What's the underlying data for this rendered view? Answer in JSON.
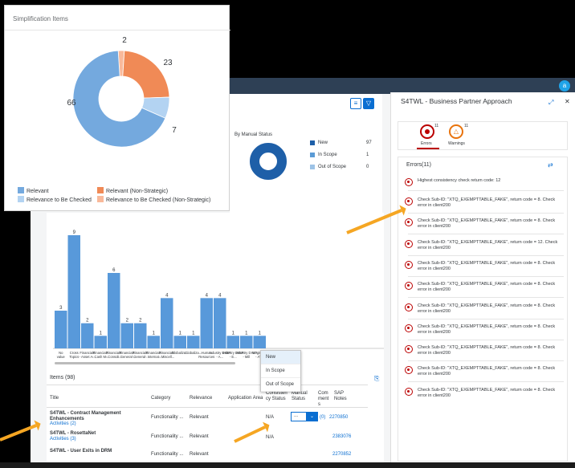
{
  "shell": {
    "avatar": "a"
  },
  "manual_status": {
    "title": "By Manual Status",
    "legend": [
      {
        "label": "New",
        "value": "97",
        "color": "#1e5fa8"
      },
      {
        "label": "In Scope",
        "value": "1",
        "color": "#5b9bd5"
      },
      {
        "label": "Out of Scope",
        "value": "0",
        "color": "#9dc3e6"
      }
    ]
  },
  "bar_chart": {
    "chart_data": {
      "type": "bar",
      "categories": [
        "No value",
        "Cross Topics",
        "Financials - Asset A...",
        "Financials - Cash M...",
        "Financials - Consoli...",
        "Financials - General ...",
        "Financials - General ...",
        "Financials - Internat...",
        "Financials - Miscell...",
        "Globaliza...",
        "Globaliza...",
        "Human Resources",
        "Industry DIMP - A...",
        "Industry DIMP - E...",
        "Industry DIMP - Mill",
        "Logistics - ATP"
      ],
      "values": [
        3,
        9,
        2,
        1,
        6,
        2,
        2,
        1,
        4,
        1,
        1,
        4,
        4,
        1,
        1,
        1
      ],
      "ylim": [
        0,
        9
      ],
      "color": "#5899da"
    }
  },
  "items": {
    "title": "Items (98)",
    "columns": [
      "Title",
      "Category",
      "Relevance",
      "Application Area",
      "Consistency Status",
      "Manual Status",
      "Comments",
      "SAP Notes"
    ],
    "col_display": [
      "Title",
      "Category",
      "Relevance",
      "Application Area",
      "Consisten\ncy Status",
      "Manual\nStatus",
      "Com\nment\ns",
      "SAP\nNotes"
    ],
    "rows": [
      {
        "title": "S4TWL - Contract Management Enhancements",
        "activities": "Activities (2)",
        "category": "Functionality ...",
        "relevance": "Relevant",
        "consistency": "N/A",
        "manual_status": "...",
        "comments": "(0)",
        "note": "2270850"
      },
      {
        "title": "S4TWL - RosettaNet",
        "activities": "Activities (3)",
        "category": "Functionality ...",
        "relevance": "Relevant",
        "consistency": "N/A",
        "manual_status": "",
        "comments": "",
        "note": "2383076"
      },
      {
        "title": "S4TWL - User Exits in DRM",
        "activities": "",
        "category": "Functionality ...",
        "relevance": "Relevant",
        "consistency": "",
        "manual_status": "",
        "comments": "",
        "note": "2270852"
      }
    ],
    "dropdown_options": [
      "New",
      "In Scope",
      "Out of Scope"
    ]
  },
  "panel": {
    "title": "S4TWL - Business Partner Approach",
    "errors_tab": {
      "label": "Errors",
      "count": "11"
    },
    "warnings_tab": {
      "label": "Warnings",
      "count": "11"
    },
    "section_title": "Errors(11)",
    "messages": [
      "Highest consistency check return code: 12",
      "Check Sub-ID: \"XTQ_EXEMPTTABLE_FAKE\", return code = 8. Check error in client200",
      "Check Sub-ID: \"XTQ_EXEMPTTABLE_FAKE\", return code = 8. Check error in client200",
      "Check Sub-ID: \"XTQ_EXEMPTTABLE_FAKE\", return code = 12. Check error in client200",
      "Check Sub-ID: \"XTQ_EXEMPTTABLE_FAKE\", return code = 8. Check error in client200",
      "Check Sub-ID: \"XTQ_EXEMPTTABLE_FAKE\", return code = 8. Check error in client200",
      "Check Sub-ID: \"XTQ_EXEMPTTABLE_FAKE\", return code = 8. Check error in client200",
      "Check Sub-ID: \"XTQ_EXEMPTTABLE_FAKE\", return code = 8. Check error in client200",
      "Check Sub-ID: \"XTQ_EXEMPTTABLE_FAKE\", return code = 8. Check error in client200",
      "Check Sub-ID: \"XTQ_EXEMPTTABLE_FAKE\", return code = 8. Check error in client200",
      "Check Sub-ID: \"XTQ_EXEMPTTABLE_FAKE\", return code = 8. Check error in client200"
    ]
  },
  "pie": {
    "title": "Simplification Items",
    "chart_data": {
      "type": "pie",
      "categories": [
        "Relevant",
        "Relevant (Non-Strategic)",
        "Relevance to Be Checked",
        "Relevance to Be Checked (Non-Strategic)"
      ],
      "values": [
        66,
        23,
        7,
        2
      ],
      "colors": [
        "#74a9de",
        "#f08a56",
        "#b3d3f2",
        "#f9b99a"
      ]
    }
  },
  "colors": {
    "arrow": "#f5a623",
    "brand": "#0a6ed1",
    "error": "#bb0000",
    "warning": "#e9730c"
  }
}
